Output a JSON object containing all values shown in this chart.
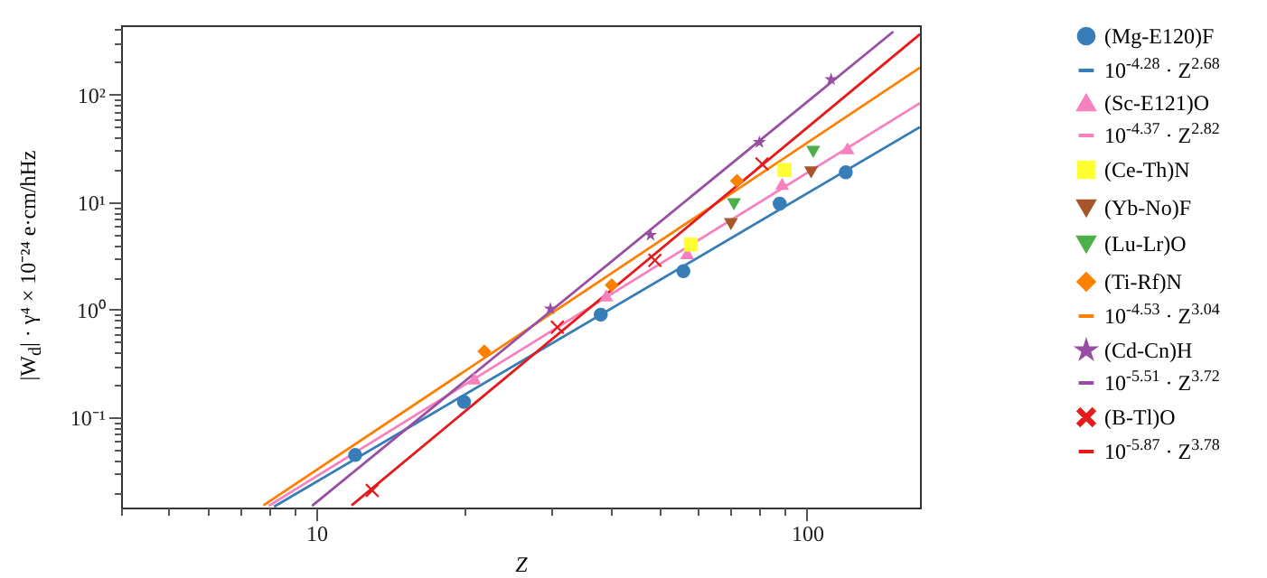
{
  "chart_data": {
    "type": "scatter",
    "xlabel": "Z",
    "ylabel": "|W$_{d}$| · γ⁴ × 10⁻²⁴ e·cm/hHz",
    "log": "xy",
    "grid": false,
    "legend": "right",
    "xlim": [
      4,
      170
    ],
    "ylim": [
      0.0145,
      440
    ],
    "xticks": [
      {
        "value": 4,
        "label": null
      },
      {
        "value": 5,
        "label": null
      },
      {
        "value": 6,
        "label": null
      },
      {
        "value": 7,
        "label": null
      },
      {
        "value": 8,
        "label": null
      },
      {
        "value": 9,
        "label": null
      },
      10,
      {
        "value": 20,
        "label": null
      },
      {
        "value": 30,
        "label": null
      },
      {
        "value": 40,
        "label": null
      },
      {
        "value": 50,
        "label": null
      },
      {
        "value": 60,
        "label": null
      },
      {
        "value": 70,
        "label": null
      },
      {
        "value": 80,
        "label": null
      },
      {
        "value": 90,
        "label": null
      },
      100
    ],
    "yticks": [
      {
        "value": 0.02,
        "label": null
      },
      {
        "value": 0.03,
        "label": null
      },
      {
        "value": 0.04,
        "label": null
      },
      {
        "value": 0.05,
        "label": null
      },
      {
        "value": 0.06,
        "label": null
      },
      {
        "value": 0.07,
        "label": null
      },
      {
        "value": 0.08,
        "label": null
      },
      {
        "value": 0.09,
        "label": null
      },
      {
        "value": 0.1,
        "label": "10⁻¹"
      },
      {
        "value": 0.2,
        "label": null
      },
      {
        "value": 0.3,
        "label": null
      },
      {
        "value": 0.4,
        "label": null
      },
      {
        "value": 0.5,
        "label": null
      },
      {
        "value": 0.6,
        "label": null
      },
      {
        "value": 0.7,
        "label": null
      },
      {
        "value": 0.8,
        "label": null
      },
      {
        "value": 0.9,
        "label": null
      },
      {
        "value": 1,
        "label": "10⁰"
      },
      {
        "value": 2,
        "label": null
      },
      {
        "value": 3,
        "label": null
      },
      {
        "value": 4,
        "label": null
      },
      {
        "value": 5,
        "label": null
      },
      {
        "value": 6,
        "label": null
      },
      {
        "value": 7,
        "label": null
      },
      {
        "value": 8,
        "label": null
      },
      {
        "value": 9,
        "label": null
      },
      {
        "value": 10,
        "label": "10¹"
      },
      {
        "value": 20,
        "label": null
      },
      {
        "value": 30,
        "label": null
      },
      {
        "value": 40,
        "label": null
      },
      {
        "value": 50,
        "label": null
      },
      {
        "value": 60,
        "label": null
      },
      {
        "value": 70,
        "label": null
      },
      {
        "value": 80,
        "label": null
      },
      {
        "value": 90,
        "label": null
      },
      {
        "value": 100,
        "label": "10²"
      },
      {
        "value": 200,
        "label": null
      },
      {
        "value": 300,
        "label": null
      },
      {
        "value": 400,
        "label": null
      }
    ],
    "series": [
      {
        "name": "(Mg-E120)F",
        "type": "scatter",
        "marker": "circle",
        "color": "#377eb8",
        "x": [
          12,
          20,
          38,
          56,
          88,
          120
        ],
        "values": [
          0.0446,
          0.139,
          0.9,
          2.28,
          9.66,
          18.9
        ]
      },
      {
        "name": "10$^{-4.28}$ · Z$^{2.68}$",
        "type": "line",
        "color": "#377eb8",
        "x": [
          8.2,
          170
        ],
        "values": [
          0.01476,
          49.8
        ]
      },
      {
        "name": "(Sc-E121)O",
        "type": "scatter",
        "marker": "triangle",
        "color": "#f781bf",
        "x": [
          21,
          39,
          57,
          89,
          121
        ],
        "values": [
          0.23,
          1.36,
          3.36,
          14.8,
          31.7
        ]
      },
      {
        "name": "10$^{-4.37}$ · Z$^{2.82}$",
        "type": "line",
        "color": "#f781bf",
        "x": [
          8,
          170
        ],
        "values": [
          0.01503,
          83.2
        ]
      },
      {
        "name": "(Ce-Th)N",
        "type": "scatter",
        "marker": "square",
        "color": "#ffff33",
        "x": [
          58,
          90
        ],
        "values": [
          4.03,
          19.9
        ]
      },
      {
        "name": "(Yb-No)F",
        "type": "scatter",
        "marker": "triangle-down",
        "color": "#a65628",
        "x": [
          70,
          102
        ],
        "values": [
          6.24,
          18.9
        ]
      },
      {
        "name": "(Lu-Lr)O",
        "type": "scatter",
        "marker": "triangle-down",
        "color": "#4daf4a",
        "x": [
          71,
          103
        ],
        "values": [
          9.55,
          29.3
        ]
      },
      {
        "name": "(Ti-Rf)N",
        "type": "scatter",
        "marker": "diamond",
        "color": "#ff7f00",
        "x": [
          22,
          40,
          72
        ],
        "values": [
          0.41,
          1.69,
          15.8
        ]
      },
      {
        "name": "10$^{-4.53}$ · Z$^{3.04}$",
        "type": "line",
        "color": "#ff7f00",
        "x": [
          7.8,
          170
        ],
        "values": [
          0.0152,
          177.9
        ]
      },
      {
        "name": "(Cd-Cn)H",
        "type": "scatter",
        "marker": "star",
        "color": "#984ea3",
        "x": [
          30,
          48,
          80,
          112
        ],
        "values": [
          1.02,
          4.94,
          36,
          138
        ]
      },
      {
        "name": "10$^{-5.51}$ · Z$^{3.72}$",
        "type": "line",
        "color": "#984ea3",
        "x": [
          9.8,
          150
        ],
        "values": [
          0.01503,
          384.6
        ]
      },
      {
        "name": "(B-Tl)O",
        "type": "scatter",
        "marker": "cross",
        "color": "#e41a1c",
        "x": [
          13,
          31,
          49,
          81
        ],
        "values": [
          0.0209,
          0.687,
          2.88,
          22.6
        ]
      },
      {
        "name": "10$^{-5.87}$ · Z$^{3.78}$",
        "type": "line",
        "color": "#e41a1c",
        "x": [
          11.8,
          170
        ],
        "values": [
          0.0152,
          363.9
        ]
      }
    ]
  }
}
